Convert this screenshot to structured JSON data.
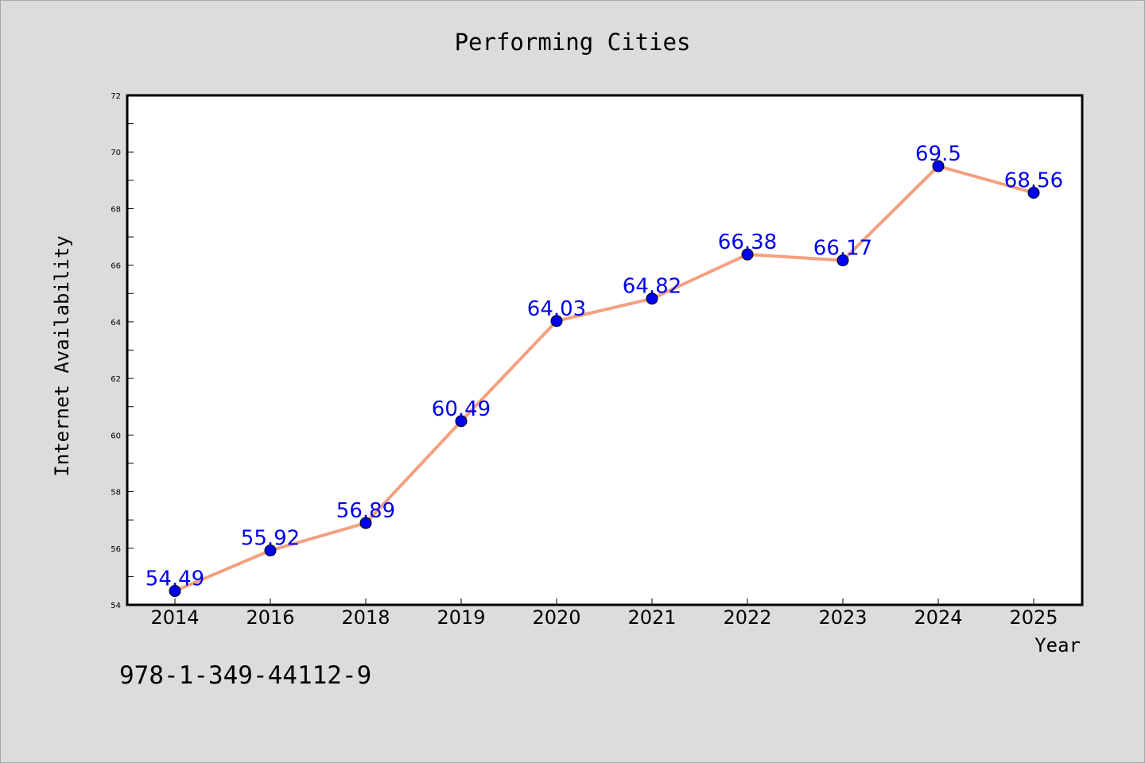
{
  "chart_data": {
    "type": "line",
    "title": "Performing Cities",
    "xlabel": "Year",
    "ylabel": "Internet Availability",
    "categories": [
      "2014",
      "2016",
      "2018",
      "2019",
      "2020",
      "2021",
      "2022",
      "2023",
      "2024",
      "2025"
    ],
    "series": [
      {
        "values": [
          54.49,
          55.92,
          56.89,
          60.49,
          64.03,
          64.82,
          66.38,
          66.17,
          69.5,
          68.56
        ],
        "labels": [
          "54.49",
          "55.92",
          "56.89",
          "60.49",
          "64.03",
          "64.82",
          "66.38",
          "66.17",
          "69.5",
          "68.56"
        ],
        "line_color": "#f4a07f",
        "marker_color": "#0000ee",
        "label_color": "#0000ee"
      }
    ],
    "ylim": [
      54,
      72
    ],
    "yticks": [
      "54",
      "56",
      "58",
      "60",
      "62",
      "64",
      "66",
      "68",
      "70",
      "72"
    ],
    "grid": false,
    "legend": "none"
  },
  "footnote": "978-1-349-44112-9",
  "colors": {
    "background": "#dcdcdc",
    "plot_background": "#ffffff"
  }
}
